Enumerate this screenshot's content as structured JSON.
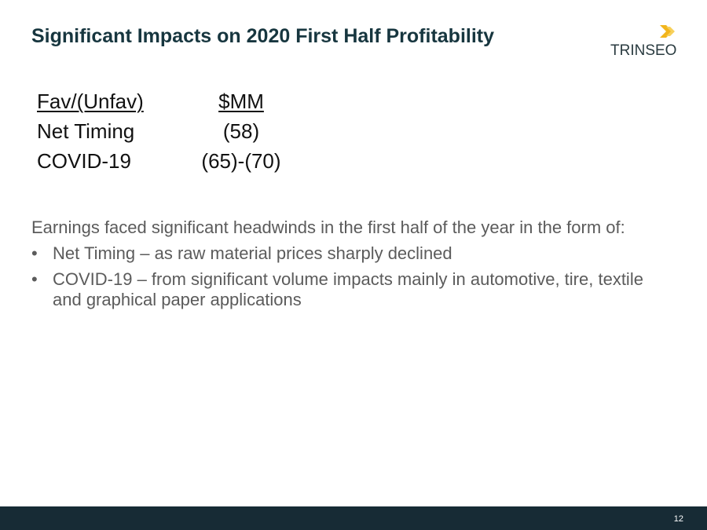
{
  "header": {
    "title": "Significant Impacts on 2020 First Half Profitability",
    "logo": "TRINSEO"
  },
  "table": {
    "header": [
      "Fav/(Unfav)",
      "$MM"
    ],
    "rows": [
      [
        "Net Timing",
        "(58)"
      ],
      [
        "COVID-19",
        "(65)-(70)"
      ]
    ]
  },
  "body": {
    "intro": "Earnings faced significant headwinds in the first half of the year in the form of:",
    "bullets": [
      "Net Timing – as raw material prices sharply declined",
      "COVID-19 – from significant volume impacts mainly in automotive, tire, textile and graphical paper applications"
    ]
  },
  "footer": {
    "page": "12"
  }
}
